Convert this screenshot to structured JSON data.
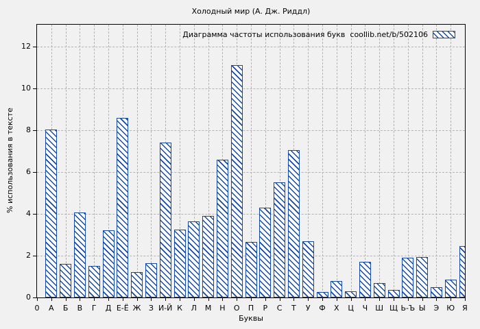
{
  "title": "Холодный мир (А. Дж. Риддл)",
  "colors": {
    "bar": "#1248a8",
    "bar_fill": "#ffffff",
    "grid": "#b3b3b3",
    "axis": "#000000",
    "background": "#f1f1f1"
  },
  "chart_data": {
    "type": "bar",
    "title": "Холодный мир (А. Дж. Риддл)",
    "legend_label": "Диаграмма частоты использования букв  coollib.net/b/502106",
    "legend_position": "top-right-inside",
    "legend_swatch": "hatched-bar-swatch",
    "xlabel": "Буквы",
    "ylabel": "% использования в тексте",
    "origin_label": "0",
    "grid": true,
    "hatch_style": "diagonal-down",
    "ylim": [
      0,
      13.05
    ],
    "yticks": [
      0,
      2,
      4,
      6,
      8,
      10,
      12
    ],
    "categories": [
      "А",
      "Б",
      "В",
      "Г",
      "Д",
      "Е-Ё",
      "Ж",
      "З",
      "И-Й",
      "К",
      "Л",
      "М",
      "Н",
      "О",
      "П",
      "Р",
      "С",
      "Т",
      "У",
      "Ф",
      "Х",
      "Ц",
      "Ч",
      "Ш",
      "Щ",
      "Ь-Ъ",
      "Ы",
      "Э",
      "Ю",
      "Я"
    ],
    "values": [
      8.05,
      1.6,
      4.05,
      1.5,
      3.2,
      8.6,
      1.2,
      1.65,
      7.4,
      3.25,
      3.65,
      3.9,
      6.6,
      11.1,
      2.65,
      4.3,
      5.5,
      7.05,
      2.7,
      0.25,
      0.8,
      0.3,
      1.7,
      0.7,
      0.35,
      1.9,
      1.95,
      0.5,
      0.85,
      2.45
    ]
  }
}
